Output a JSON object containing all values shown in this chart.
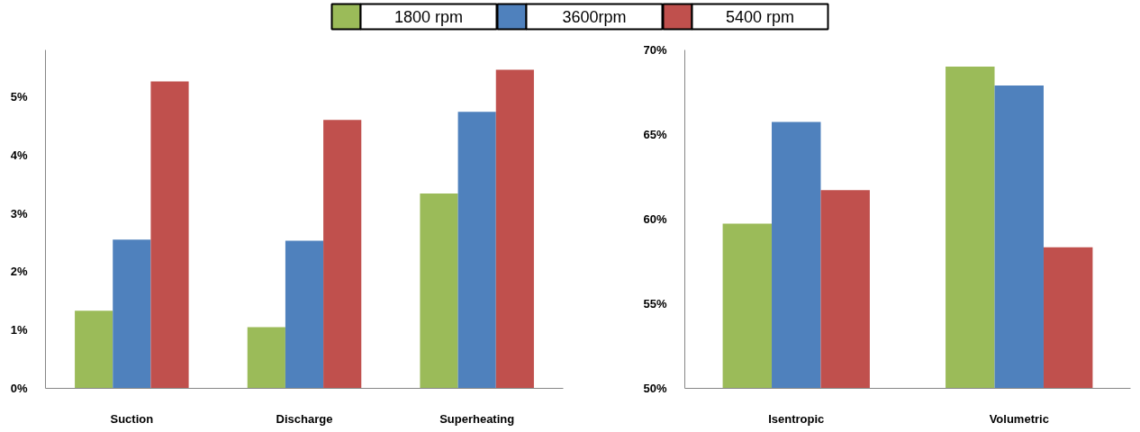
{
  "chart_data": [
    {
      "type": "bar",
      "categories": [
        "Suction",
        "Discharge",
        "Superheating"
      ],
      "ylim": [
        0,
        5.8
      ],
      "yticks": [
        {
          "value": 0,
          "label": "0%"
        },
        {
          "value": 1,
          "label": "1%"
        },
        {
          "value": 2,
          "label": "2%"
        },
        {
          "value": 3,
          "label": "3%"
        },
        {
          "value": 4,
          "label": "4%"
        },
        {
          "value": 5,
          "label": "5%"
        }
      ],
      "grid": false,
      "legend": "top",
      "series": [
        {
          "name": "1800 rpm",
          "color": "#9bbb59",
          "values": [
            1.33,
            1.05,
            3.34
          ]
        },
        {
          "name": "3600rpm",
          "color": "#4f81bd",
          "values": [
            2.55,
            2.53,
            4.74
          ]
        },
        {
          "name": "5400 rpm",
          "color": "#c0504d",
          "values": [
            5.26,
            4.6,
            5.46
          ]
        }
      ]
    },
    {
      "type": "bar",
      "categories": [
        "Isentropic",
        "Volumetric"
      ],
      "ylim": [
        50,
        70
      ],
      "yticks": [
        {
          "value": 50,
          "label": "50%"
        },
        {
          "value": 55,
          "label": "55%"
        },
        {
          "value": 60,
          "label": "60%"
        },
        {
          "value": 65,
          "label": "65%"
        },
        {
          "value": 70,
          "label": "70%"
        }
      ],
      "grid": false,
      "series": [
        {
          "color": "#9bbb59",
          "values": [
            59.74,
            69.01
          ]
        },
        {
          "color": "#4f81bd",
          "values": [
            65.74,
            67.9
          ]
        },
        {
          "color": "#c0504d",
          "values": [
            61.72,
            58.34
          ]
        }
      ]
    }
  ]
}
